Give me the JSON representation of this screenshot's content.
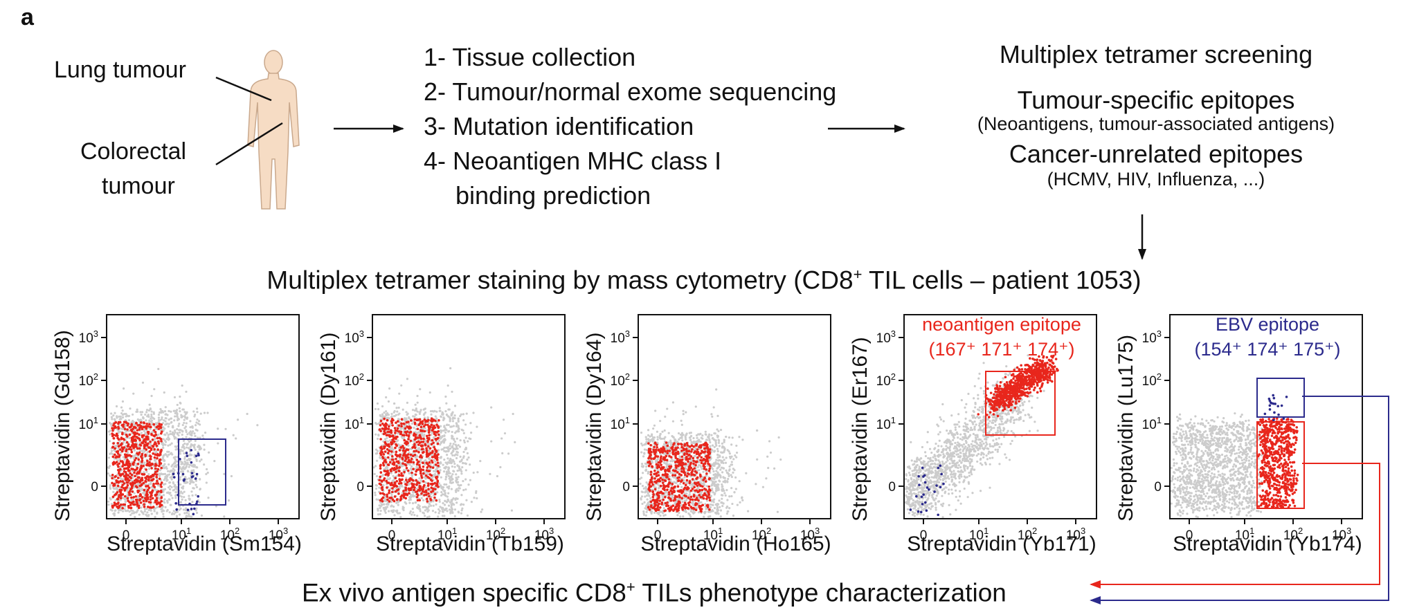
{
  "panel_letter": "a",
  "body_labels": {
    "lung": "Lung tumour",
    "colorectal_line1": "Colorectal",
    "colorectal_line2": "tumour"
  },
  "steps": [
    "1- Tissue collection",
    "2- Tumour/normal exome sequencing",
    "3- Mutation identification",
    "4- Neoantigen MHC class I",
    "binding prediction"
  ],
  "screening": {
    "title": "Multiplex tetramer screening",
    "tumour_head": "Tumour-specific epitopes",
    "tumour_sub": "(Neoantigens, tumour-associated antigens)",
    "unrelated_head": "Cancer-unrelated epitopes",
    "unrelated_sub": "(HCMV, HIV, Influenza, ...)"
  },
  "main_title": {
    "pre": "Multiplex tetramer staining by mass cytometry (CD8",
    "sup": "+",
    "post": " TIL cells – patient 1053)"
  },
  "bottom": {
    "pre": "Ex vivo antigen specific CD8",
    "sup": "+",
    "post": " TILs phenotype characterization"
  },
  "tick_labels": {
    "zero": "0",
    "base": "10",
    "exps": [
      "1",
      "2",
      "3"
    ]
  },
  "plots": [
    {
      "ylabel": "Streptavidin (Gd158)",
      "xlabel": "Streptavidin (Sm154)"
    },
    {
      "ylabel": "Streptavidin (Dy161)",
      "xlabel": "Streptavidin (Tb159)"
    },
    {
      "ylabel": "Streptavidin (Dy164)",
      "xlabel": "Streptavidin (Ho165)"
    },
    {
      "ylabel": "Streptavidin (Er167)",
      "xlabel": "Streptavidin (Yb171)"
    },
    {
      "ylabel": "Streptavidin (Lu175)",
      "xlabel": "Streptavidin (Yb174)"
    }
  ],
  "gate_labels": {
    "neo_title": "neoantigen epitope",
    "neo_sub": "(167⁺ 171⁺ 174⁺)",
    "ebv_title": "EBV epitope",
    "ebv_sub": "(154⁺ 174⁺ 175⁺)"
  },
  "colors": {
    "background_cells": "#cccccc",
    "tumour_epitope": "#e8261c",
    "ebv_epitope": "#2b2a8c",
    "skin": "#f6dcc4",
    "skin_outline": "#c9a88c",
    "text": "#111111"
  }
}
